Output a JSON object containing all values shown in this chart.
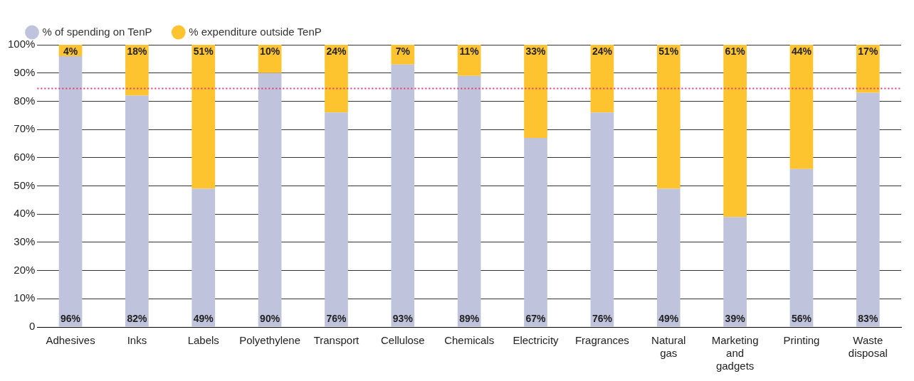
{
  "chart_data": {
    "type": "bar",
    "stacked": true,
    "categories": [
      "Adhesives",
      "Inks",
      "Labels",
      "Polyethylene",
      "Transport",
      "Cellulose",
      "Chemicals",
      "Electricity",
      "Fragrances",
      "Natural gas",
      "Marketing and gadgets",
      "Printing",
      "Waste disposal"
    ],
    "series": [
      {
        "name": "% of spending on TenP",
        "color": "#c0c3dc",
        "values": [
          96,
          82,
          49,
          90,
          76,
          93,
          89,
          67,
          76,
          49,
          39,
          56,
          83
        ],
        "value_labels": [
          "96%",
          "82%",
          "49%",
          "90%",
          "76%",
          "93%",
          "89%",
          "67%",
          "76%",
          "49%",
          "39%",
          "56%",
          "83%"
        ]
      },
      {
        "name": "% expenditure outside TenP",
        "color": "#fdc42f",
        "values": [
          4,
          18,
          51,
          10,
          24,
          7,
          11,
          33,
          24,
          51,
          61,
          44,
          17
        ],
        "value_labels": [
          "4%",
          "18%",
          "51%",
          "10%",
          "24%",
          "7%",
          "11%",
          "33%",
          "24%",
          "51%",
          "61%",
          "44%",
          "17%"
        ]
      }
    ],
    "ylim": [
      0,
      100
    ],
    "yticks": [
      {
        "value": 0,
        "label": "0"
      },
      {
        "value": 10,
        "label": "10%"
      },
      {
        "value": 20,
        "label": "20%"
      },
      {
        "value": 30,
        "label": "30%"
      },
      {
        "value": 40,
        "label": "40%"
      },
      {
        "value": 50,
        "label": "50%"
      },
      {
        "value": 60,
        "label": "60%"
      },
      {
        "value": 70,
        "label": "70%"
      },
      {
        "value": 80,
        "label": "80%"
      },
      {
        "value": 90,
        "label": "90%"
      },
      {
        "value": 100,
        "label": "100%"
      }
    ],
    "grid": "y",
    "legend": "top left",
    "ref_lines": [
      {
        "axis": "y",
        "value": 84.5,
        "color": "#e8336e",
        "line_style": "dotted"
      }
    ]
  }
}
